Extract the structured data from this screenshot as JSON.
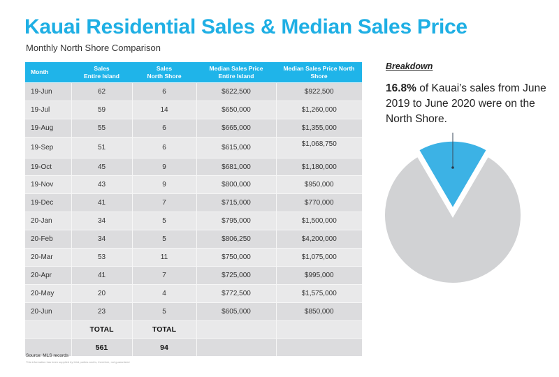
{
  "header": {
    "title": "Kauai Residential Sales & Median Sales Price",
    "subtitle": "Monthly North Shore Comparison"
  },
  "table": {
    "columns": [
      [
        "Month"
      ],
      [
        "Sales",
        "Entire Island"
      ],
      [
        "Sales",
        "North Shore"
      ],
      [
        "Median Sales Price",
        "Entire Island"
      ],
      [
        "Median Sales Price North",
        "Shore"
      ]
    ],
    "rows": [
      [
        "19-Jun",
        "62",
        "6",
        "$622,500",
        "$922,500"
      ],
      [
        "19-Jul",
        "59",
        "14",
        "$650,000",
        "$1,260,000"
      ],
      [
        "19-Aug",
        "55",
        "6",
        "$665,000",
        "$1,355,000"
      ],
      [
        "19-Sep",
        "51",
        "6",
        "$615,000",
        "$1,068,750"
      ],
      [
        "19-Oct",
        "45",
        "9",
        "$681,000",
        "$1,180,000"
      ],
      [
        "19-Nov",
        "43",
        "9",
        "$800,000",
        "$950,000"
      ],
      [
        "19-Dec",
        "41",
        "7",
        "$715,000",
        "$770,000"
      ],
      [
        "20-Jan",
        "34",
        "5",
        "$795,000",
        "$1,500,000"
      ],
      [
        "20-Feb",
        "34",
        "5",
        "$806,250",
        "$4,200,000"
      ],
      [
        "20-Mar",
        "53",
        "11",
        "$750,000",
        "$1,075,000"
      ],
      [
        "20-Apr",
        "41",
        "7",
        "$725,000",
        "$995,000"
      ],
      [
        "20-May",
        "20",
        "4",
        "$772,500",
        "$1,575,000"
      ],
      [
        "20-Jun",
        "23",
        "5",
        "$605,000",
        "$850,000"
      ]
    ],
    "total_label_row": [
      "",
      "TOTAL",
      "TOTAL",
      "",
      ""
    ],
    "total_value_row": [
      "",
      "561",
      "94",
      "",
      ""
    ]
  },
  "footer": {
    "source": "Source: MLS records",
    "disclaimer": "This information has been supplied by third parties and is, therefore, not guaranteed"
  },
  "breakdown": {
    "heading": "Breakdown",
    "highlight": "16.8%",
    "text": " of Kauai’s sales from June 2019 to June 2020 were on the North Shore."
  },
  "colors": {
    "accent": "#1fafe4",
    "header_bg": "#1fb4e9",
    "pie_highlight": "#3cb2e5",
    "pie_rest": "#d1d2d4"
  },
  "chart_data": {
    "type": "pie",
    "title": "",
    "slices": [
      {
        "label": "North Shore",
        "value": 16.8
      },
      {
        "label": "Rest of Kauai",
        "value": 83.2
      }
    ],
    "annotation": "16.8% of Kauai's sales from June 2019 to June 2020 were on the North Shore."
  }
}
